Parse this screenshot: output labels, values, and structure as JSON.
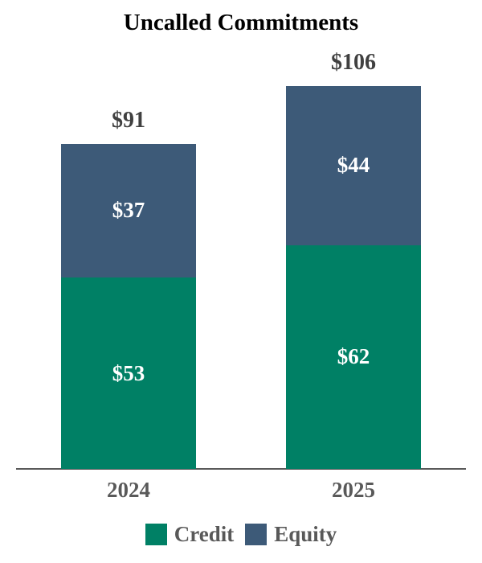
{
  "chart_data": {
    "type": "bar",
    "stacked": true,
    "title": "Uncalled Commitments",
    "categories": [
      "2024",
      "2025"
    ],
    "series": [
      {
        "name": "Credit",
        "values": [
          53,
          62
        ],
        "labels": [
          "$53",
          "$62"
        ],
        "color": "#008065"
      },
      {
        "name": "Equity",
        "values": [
          37,
          44
        ],
        "labels": [
          "$37",
          "$44"
        ],
        "color": "#3D5A78"
      }
    ],
    "totals_labels": [
      "$91",
      "$106"
    ],
    "legend": [
      "Credit",
      "Equity"
    ],
    "legend_position": "bottom",
    "grid": false,
    "xlabel": "",
    "ylabel": "",
    "ylim": [
      0,
      110
    ],
    "value_label_color": "#ffffff",
    "total_label_color": "#404040",
    "axis_label_color": "#595959",
    "axis_line_color": "#595959",
    "title_color": "#000000"
  }
}
